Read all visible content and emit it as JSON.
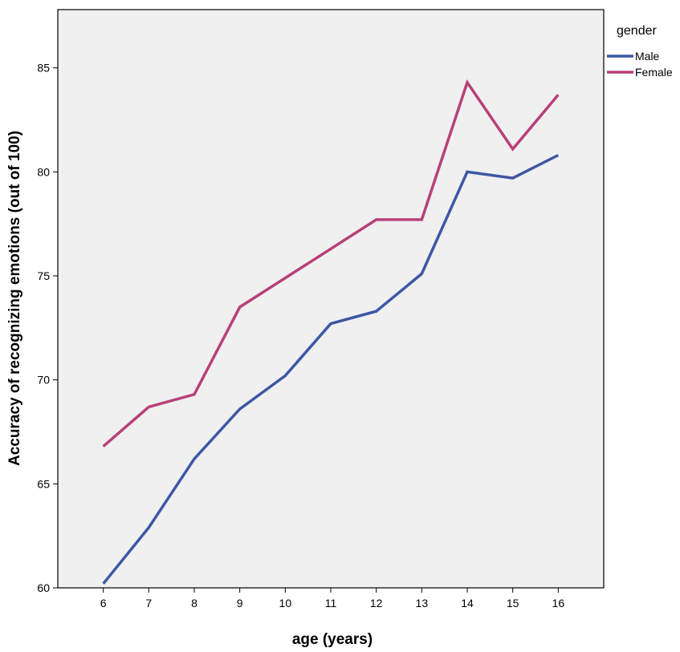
{
  "chart_data": {
    "type": "line",
    "title": "",
    "xlabel": "age (years)",
    "ylabel": "Accuracy of recognizing emotions (out of 100)",
    "x": [
      6,
      7,
      8,
      9,
      10,
      11,
      12,
      13,
      14,
      15,
      16
    ],
    "x_tick_labels": [
      "6",
      "7",
      "8",
      "9",
      "10",
      "11",
      "12",
      "13",
      "14",
      "15",
      "16"
    ],
    "xlim": [
      5,
      17
    ],
    "ylim": [
      60,
      87.8
    ],
    "y_ticks": [
      60,
      65,
      70,
      75,
      80,
      85
    ],
    "y_tick_labels": [
      "60",
      "65",
      "70",
      "75",
      "80",
      "85"
    ],
    "grid": false,
    "legend": {
      "title": "gender",
      "position": "outside-top-right"
    },
    "background_color": "#f0f0f0",
    "series": [
      {
        "name": "Male",
        "color": "#3d57a6",
        "values": [
          60.2,
          62.9,
          66.2,
          68.6,
          70.2,
          72.7,
          73.3,
          75.1,
          80.0,
          79.7,
          80.8
        ]
      },
      {
        "name": "Female",
        "color": "#b8407a",
        "values": [
          66.8,
          68.7,
          69.3,
          73.5,
          74.9,
          76.3,
          77.7,
          77.7,
          84.3,
          81.1,
          83.7
        ]
      }
    ]
  }
}
